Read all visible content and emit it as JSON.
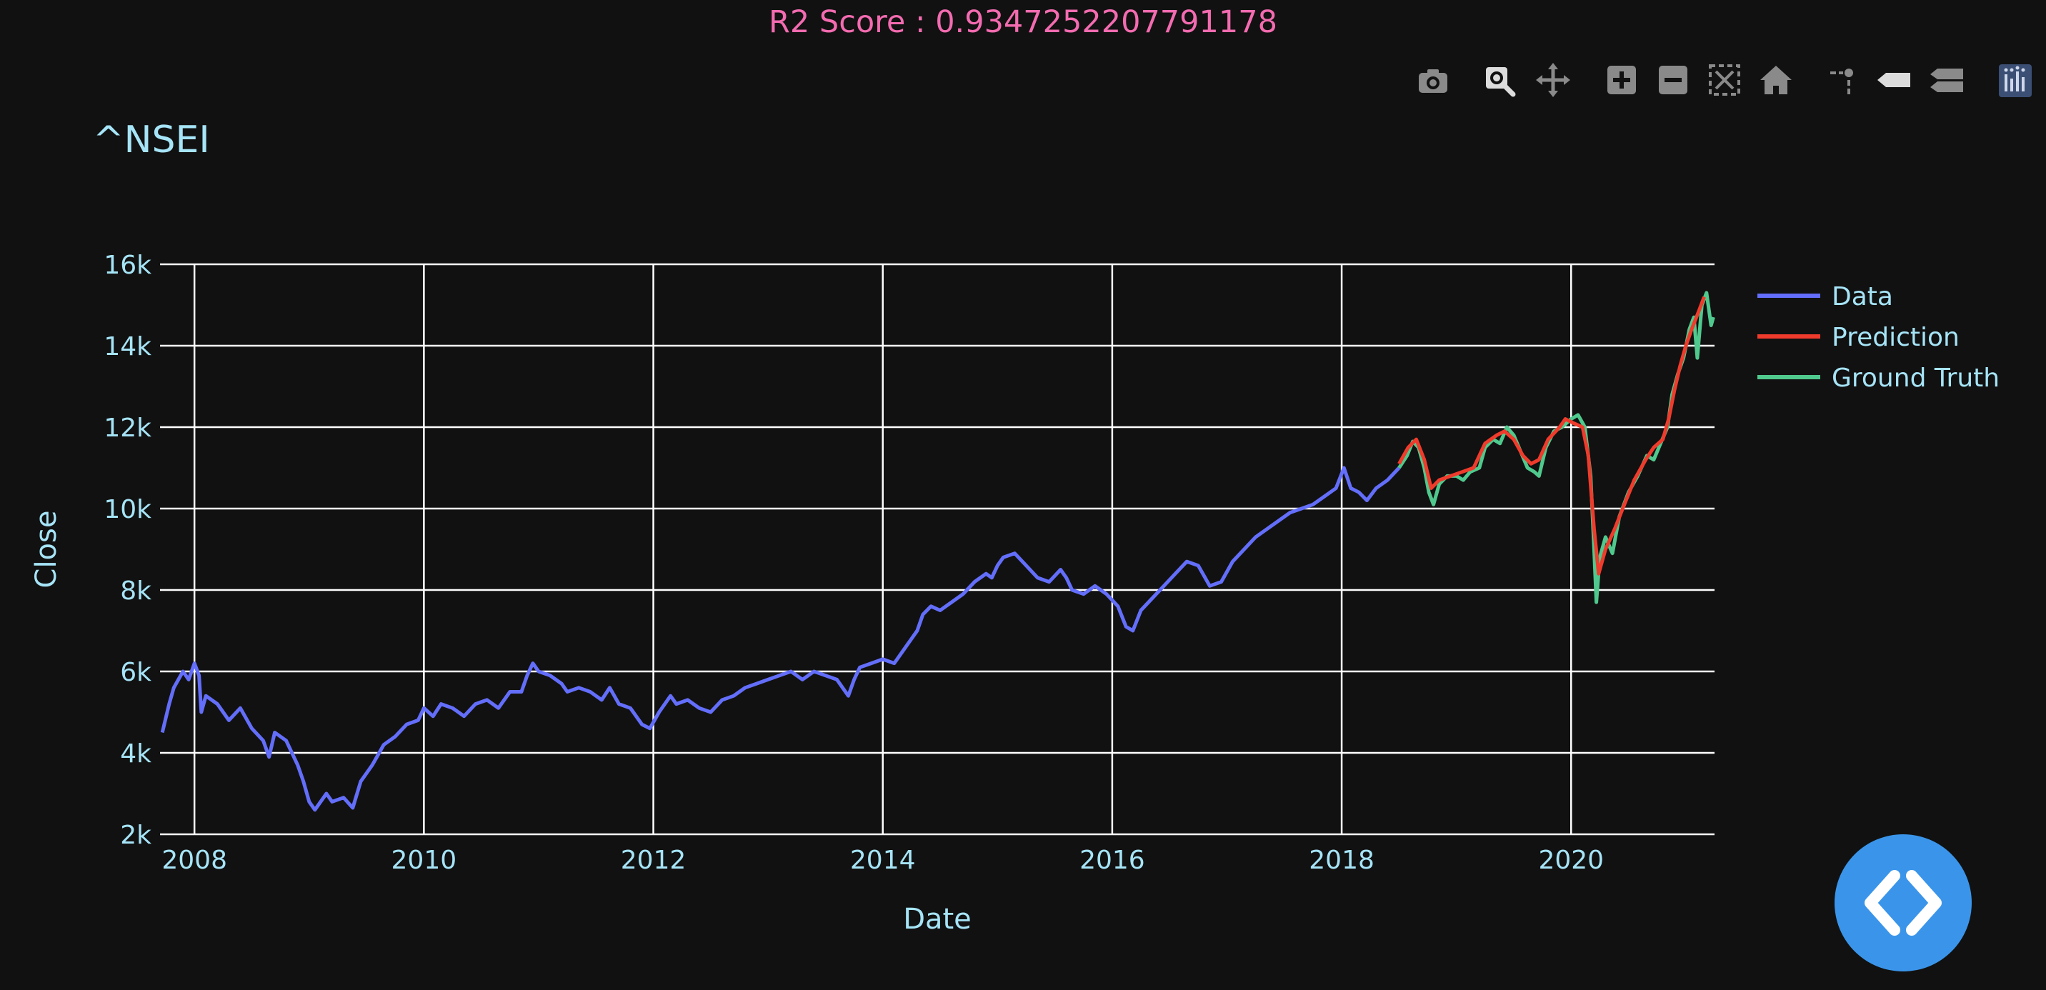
{
  "header": {
    "r2_text": "R2 Score : 0.9347252207791178"
  },
  "toolbar": {
    "icons": [
      "camera-icon",
      "zoom-icon",
      "pan-icon",
      "zoom-in-icon",
      "zoom-out-icon",
      "autoscale-icon",
      "reset-axes-icon",
      "spike-lines-icon",
      "hover-closest-icon",
      "hover-compare-icon",
      "plotly-logo-icon"
    ]
  },
  "chart_data": {
    "type": "line",
    "title": "^NSEI",
    "xlabel": "Date",
    "ylabel": "Close",
    "xlim": [
      2007.7,
      2021.25
    ],
    "ylim": [
      2000,
      16000
    ],
    "x_ticks": [
      "2008",
      "2010",
      "2012",
      "2014",
      "2016",
      "2018",
      "2020"
    ],
    "y_ticks": [
      "2k",
      "4k",
      "6k",
      "8k",
      "10k",
      "12k",
      "14k",
      "16k"
    ],
    "grid": true,
    "legend_position": "top-right",
    "colors": {
      "Data": "#636efa",
      "Prediction": "#ef3b2c",
      "Ground Truth": "#4fc98d"
    },
    "series": [
      {
        "name": "Data",
        "points": [
          [
            2007.72,
            4500
          ],
          [
            2007.78,
            5200
          ],
          [
            2007.82,
            5600
          ],
          [
            2007.9,
            6000
          ],
          [
            2007.95,
            5800
          ],
          [
            2008.0,
            6200
          ],
          [
            2008.04,
            5900
          ],
          [
            2008.06,
            5000
          ],
          [
            2008.1,
            5400
          ],
          [
            2008.2,
            5200
          ],
          [
            2008.3,
            4800
          ],
          [
            2008.4,
            5100
          ],
          [
            2008.5,
            4600
          ],
          [
            2008.6,
            4300
          ],
          [
            2008.65,
            3900
          ],
          [
            2008.7,
            4500
          ],
          [
            2008.8,
            4300
          ],
          [
            2008.9,
            3700
          ],
          [
            2008.95,
            3300
          ],
          [
            2009.0,
            2800
          ],
          [
            2009.05,
            2600
          ],
          [
            2009.15,
            3000
          ],
          [
            2009.2,
            2800
          ],
          [
            2009.3,
            2900
          ],
          [
            2009.38,
            2650
          ],
          [
            2009.45,
            3300
          ],
          [
            2009.55,
            3700
          ],
          [
            2009.65,
            4200
          ],
          [
            2009.75,
            4400
          ],
          [
            2009.85,
            4700
          ],
          [
            2009.95,
            4800
          ],
          [
            2010.0,
            5100
          ],
          [
            2010.08,
            4900
          ],
          [
            2010.15,
            5200
          ],
          [
            2010.25,
            5100
          ],
          [
            2010.35,
            4900
          ],
          [
            2010.45,
            5200
          ],
          [
            2010.55,
            5300
          ],
          [
            2010.65,
            5100
          ],
          [
            2010.75,
            5500
          ],
          [
            2010.85,
            5500
          ],
          [
            2010.9,
            5900
          ],
          [
            2010.95,
            6200
          ],
          [
            2011.0,
            6000
          ],
          [
            2011.1,
            5900
          ],
          [
            2011.2,
            5700
          ],
          [
            2011.25,
            5500
          ],
          [
            2011.35,
            5600
          ],
          [
            2011.45,
            5500
          ],
          [
            2011.55,
            5300
          ],
          [
            2011.62,
            5600
          ],
          [
            2011.7,
            5200
          ],
          [
            2011.8,
            5100
          ],
          [
            2011.85,
            4900
          ],
          [
            2011.9,
            4700
          ],
          [
            2011.97,
            4600
          ],
          [
            2012.05,
            5000
          ],
          [
            2012.15,
            5400
          ],
          [
            2012.2,
            5200
          ],
          [
            2012.3,
            5300
          ],
          [
            2012.4,
            5100
          ],
          [
            2012.5,
            5000
          ],
          [
            2012.6,
            5300
          ],
          [
            2012.7,
            5400
          ],
          [
            2012.8,
            5600
          ],
          [
            2012.9,
            5700
          ],
          [
            2013.0,
            5800
          ],
          [
            2013.1,
            5900
          ],
          [
            2013.2,
            6000
          ],
          [
            2013.3,
            5800
          ],
          [
            2013.4,
            6000
          ],
          [
            2013.5,
            5900
          ],
          [
            2013.6,
            5800
          ],
          [
            2013.7,
            5400
          ],
          [
            2013.75,
            5800
          ],
          [
            2013.8,
            6100
          ],
          [
            2013.9,
            6200
          ],
          [
            2014.0,
            6300
          ],
          [
            2014.1,
            6200
          ],
          [
            2014.15,
            6400
          ],
          [
            2014.2,
            6600
          ],
          [
            2014.3,
            7000
          ],
          [
            2014.35,
            7400
          ],
          [
            2014.42,
            7600
          ],
          [
            2014.5,
            7500
          ],
          [
            2014.6,
            7700
          ],
          [
            2014.7,
            7900
          ],
          [
            2014.8,
            8200
          ],
          [
            2014.9,
            8400
          ],
          [
            2014.95,
            8300
          ],
          [
            2015.0,
            8600
          ],
          [
            2015.05,
            8800
          ],
          [
            2015.15,
            8900
          ],
          [
            2015.25,
            8600
          ],
          [
            2015.35,
            8300
          ],
          [
            2015.45,
            8200
          ],
          [
            2015.55,
            8500
          ],
          [
            2015.6,
            8300
          ],
          [
            2015.65,
            8000
          ],
          [
            2015.75,
            7900
          ],
          [
            2015.85,
            8100
          ],
          [
            2015.95,
            7900
          ],
          [
            2016.05,
            7600
          ],
          [
            2016.12,
            7100
          ],
          [
            2016.18,
            7000
          ],
          [
            2016.25,
            7500
          ],
          [
            2016.35,
            7800
          ],
          [
            2016.45,
            8100
          ],
          [
            2016.55,
            8400
          ],
          [
            2016.65,
            8700
          ],
          [
            2016.75,
            8600
          ],
          [
            2016.85,
            8100
          ],
          [
            2016.95,
            8200
          ],
          [
            2017.05,
            8700
          ],
          [
            2017.15,
            9000
          ],
          [
            2017.25,
            9300
          ],
          [
            2017.35,
            9500
          ],
          [
            2017.45,
            9700
          ],
          [
            2017.55,
            9900
          ],
          [
            2017.65,
            10000
          ],
          [
            2017.75,
            10100
          ],
          [
            2017.85,
            10300
          ],
          [
            2017.95,
            10500
          ],
          [
            2018.02,
            11000
          ],
          [
            2018.08,
            10500
          ],
          [
            2018.15,
            10400
          ],
          [
            2018.22,
            10200
          ],
          [
            2018.3,
            10500
          ],
          [
            2018.4,
            10700
          ],
          [
            2018.5,
            11000
          ]
        ]
      },
      {
        "name": "Prediction",
        "points": [
          [
            2018.5,
            11100
          ],
          [
            2018.58,
            11500
          ],
          [
            2018.65,
            11700
          ],
          [
            2018.72,
            11200
          ],
          [
            2018.78,
            10500
          ],
          [
            2018.85,
            10700
          ],
          [
            2018.95,
            10800
          ],
          [
            2019.05,
            10900
          ],
          [
            2019.15,
            11000
          ],
          [
            2019.25,
            11600
          ],
          [
            2019.35,
            11800
          ],
          [
            2019.42,
            11900
          ],
          [
            2019.5,
            11700
          ],
          [
            2019.58,
            11300
          ],
          [
            2019.65,
            11100
          ],
          [
            2019.72,
            11200
          ],
          [
            2019.8,
            11700
          ],
          [
            2019.9,
            12000
          ],
          [
            2019.95,
            12200
          ],
          [
            2020.02,
            12100
          ],
          [
            2020.1,
            12000
          ],
          [
            2020.15,
            11300
          ],
          [
            2020.2,
            9500
          ],
          [
            2020.24,
            8400
          ],
          [
            2020.3,
            9000
          ],
          [
            2020.38,
            9500
          ],
          [
            2020.45,
            10000
          ],
          [
            2020.55,
            10700
          ],
          [
            2020.65,
            11200
          ],
          [
            2020.72,
            11500
          ],
          [
            2020.8,
            11700
          ],
          [
            2020.85,
            12200
          ],
          [
            2020.9,
            12900
          ],
          [
            2020.95,
            13500
          ],
          [
            2021.0,
            14000
          ],
          [
            2021.05,
            14400
          ],
          [
            2021.12,
            14900
          ],
          [
            2021.16,
            15200
          ]
        ]
      },
      {
        "name": "Ground Truth",
        "points": [
          [
            2018.5,
            11000
          ],
          [
            2018.57,
            11300
          ],
          [
            2018.62,
            11650
          ],
          [
            2018.67,
            11500
          ],
          [
            2018.72,
            11000
          ],
          [
            2018.76,
            10400
          ],
          [
            2018.8,
            10100
          ],
          [
            2018.85,
            10600
          ],
          [
            2018.92,
            10800
          ],
          [
            2019.0,
            10800
          ],
          [
            2019.06,
            10700
          ],
          [
            2019.12,
            10900
          ],
          [
            2019.2,
            11000
          ],
          [
            2019.25,
            11500
          ],
          [
            2019.32,
            11700
          ],
          [
            2019.38,
            11600
          ],
          [
            2019.44,
            12000
          ],
          [
            2019.5,
            11800
          ],
          [
            2019.56,
            11400
          ],
          [
            2019.62,
            11000
          ],
          [
            2019.68,
            10900
          ],
          [
            2019.72,
            10800
          ],
          [
            2019.78,
            11500
          ],
          [
            2019.85,
            11900
          ],
          [
            2019.92,
            12000
          ],
          [
            2020.0,
            12200
          ],
          [
            2020.06,
            12300
          ],
          [
            2020.12,
            12000
          ],
          [
            2020.17,
            10800
          ],
          [
            2020.2,
            9000
          ],
          [
            2020.22,
            7700
          ],
          [
            2020.25,
            8800
          ],
          [
            2020.3,
            9300
          ],
          [
            2020.36,
            8900
          ],
          [
            2020.42,
            9800
          ],
          [
            2020.5,
            10400
          ],
          [
            2020.58,
            10800
          ],
          [
            2020.66,
            11300
          ],
          [
            2020.72,
            11200
          ],
          [
            2020.78,
            11600
          ],
          [
            2020.84,
            12000
          ],
          [
            2020.88,
            12800
          ],
          [
            2020.93,
            13300
          ],
          [
            2020.98,
            13700
          ],
          [
            2021.03,
            14400
          ],
          [
            2021.07,
            14700
          ],
          [
            2021.1,
            13700
          ],
          [
            2021.14,
            15000
          ],
          [
            2021.18,
            15300
          ],
          [
            2021.22,
            14500
          ],
          [
            2021.24,
            14700
          ]
        ]
      }
    ]
  }
}
